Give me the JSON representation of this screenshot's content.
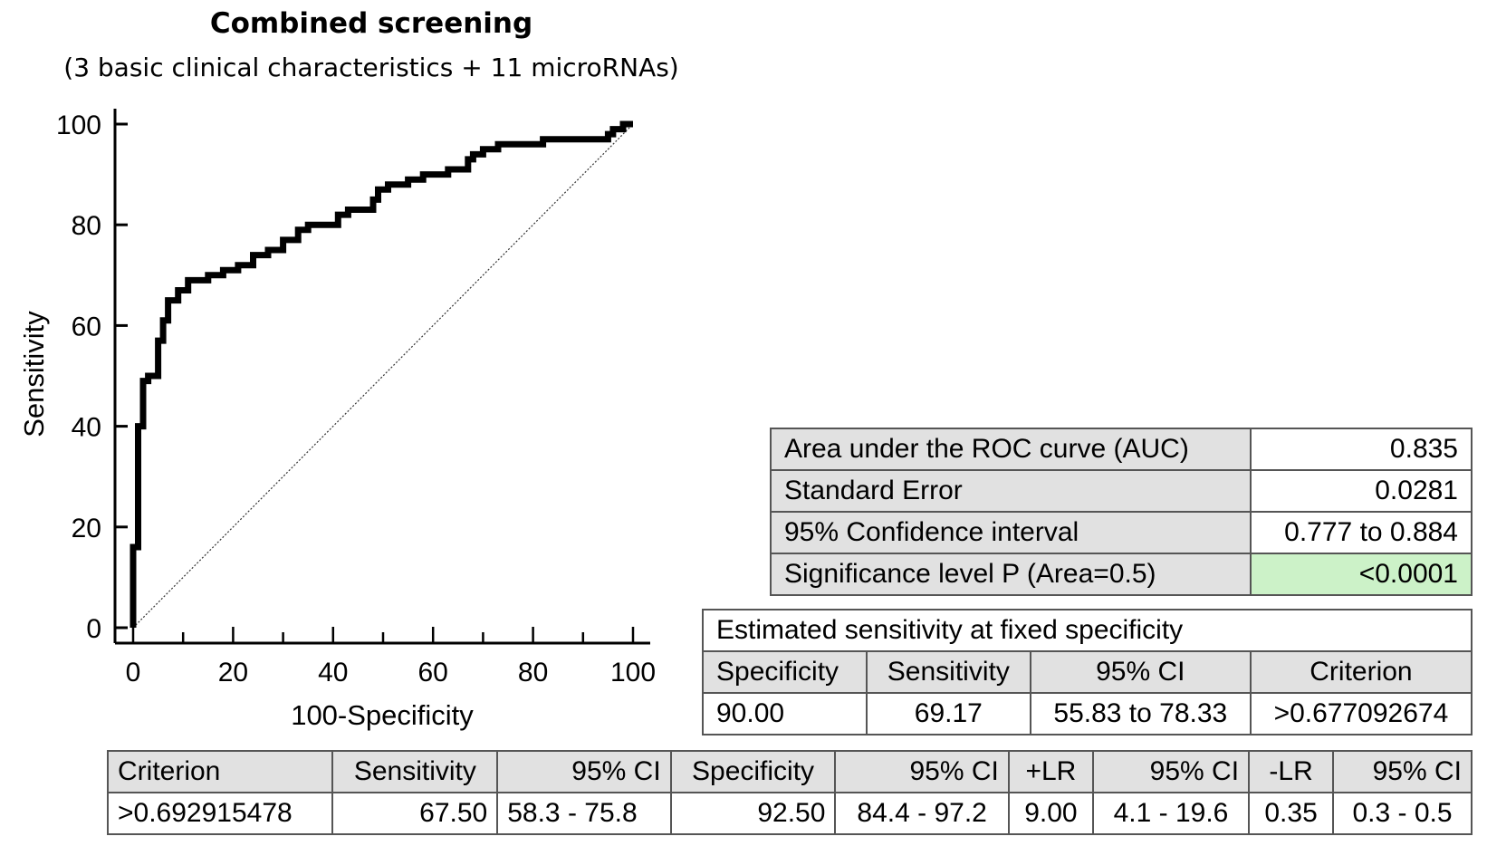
{
  "chart_data": {
    "type": "line",
    "title": "Combined screening",
    "subtitle": "(3 basic clinical characteristics + 11 microRNAs)",
    "xlabel": "100-Specificity",
    "ylabel": "Sensitivity",
    "xlim": [
      0,
      100
    ],
    "ylim": [
      0,
      100
    ],
    "xticks": [
      0,
      20,
      40,
      60,
      80,
      100
    ],
    "yticks": [
      0,
      20,
      40,
      60,
      80,
      100
    ],
    "series": [
      {
        "name": "ROC curve",
        "x": [
          0,
          0,
          1,
          1,
          2,
          2,
          3,
          3,
          5,
          5,
          6,
          6,
          7,
          7,
          9,
          9,
          11,
          11,
          15,
          15,
          18,
          18,
          21,
          21,
          24,
          24,
          27,
          27,
          30,
          30,
          33,
          33,
          35,
          35,
          41,
          41,
          43,
          43,
          48,
          48,
          49,
          49,
          51,
          51,
          55,
          55,
          58,
          58,
          63,
          63,
          67,
          67,
          68,
          68,
          70,
          70,
          73,
          73,
          82,
          82,
          95,
          95,
          96,
          96,
          98,
          98,
          100
        ],
        "y": [
          0,
          16,
          16,
          40,
          40,
          49,
          49,
          50,
          50,
          57,
          57,
          61,
          61,
          65,
          65,
          67,
          67,
          69,
          69,
          70,
          70,
          71,
          71,
          72,
          72,
          74,
          74,
          75,
          75,
          77,
          77,
          79,
          79,
          80,
          80,
          82,
          82,
          83,
          83,
          85,
          85,
          87,
          87,
          88,
          88,
          89,
          89,
          90,
          90,
          91,
          91,
          93,
          93,
          94,
          94,
          95,
          95,
          96,
          96,
          97,
          97,
          98,
          98,
          99,
          99,
          100,
          100
        ]
      },
      {
        "name": "Reference line",
        "x": [
          0,
          100
        ],
        "y": [
          0,
          100
        ]
      }
    ]
  },
  "auc_table": {
    "rows": [
      {
        "label": "Area under the ROC curve (AUC)",
        "value": "0.835"
      },
      {
        "label": "Standard Error",
        "value": "0.0281"
      },
      {
        "label": "95% Confidence interval",
        "value": "0.777 to 0.884"
      },
      {
        "label": "Significance level P (Area=0.5)",
        "value": "<0.0001"
      }
    ],
    "highlight_color": "#ccf2c8"
  },
  "fixed_specificity": {
    "title": "Estimated sensitivity at fixed specificity",
    "headers": [
      "Specificity",
      "Sensitivity",
      "95% CI",
      "Criterion"
    ],
    "row": [
      "90.00",
      "69.17",
      "55.83 to 78.33",
      ">0.677092674"
    ]
  },
  "criterion_table": {
    "headers": [
      "Criterion",
      "Sensitivity",
      "95% CI",
      "Specificity",
      "95% CI",
      "+LR",
      "95% CI",
      "-LR",
      "95% CI"
    ],
    "row": [
      ">0.692915478",
      "67.50",
      "58.3 - 75.8",
      "92.50",
      "84.4 - 97.2",
      "9.00",
      "4.1 - 19.6",
      "0.35",
      "0.3 - 0.5"
    ]
  }
}
